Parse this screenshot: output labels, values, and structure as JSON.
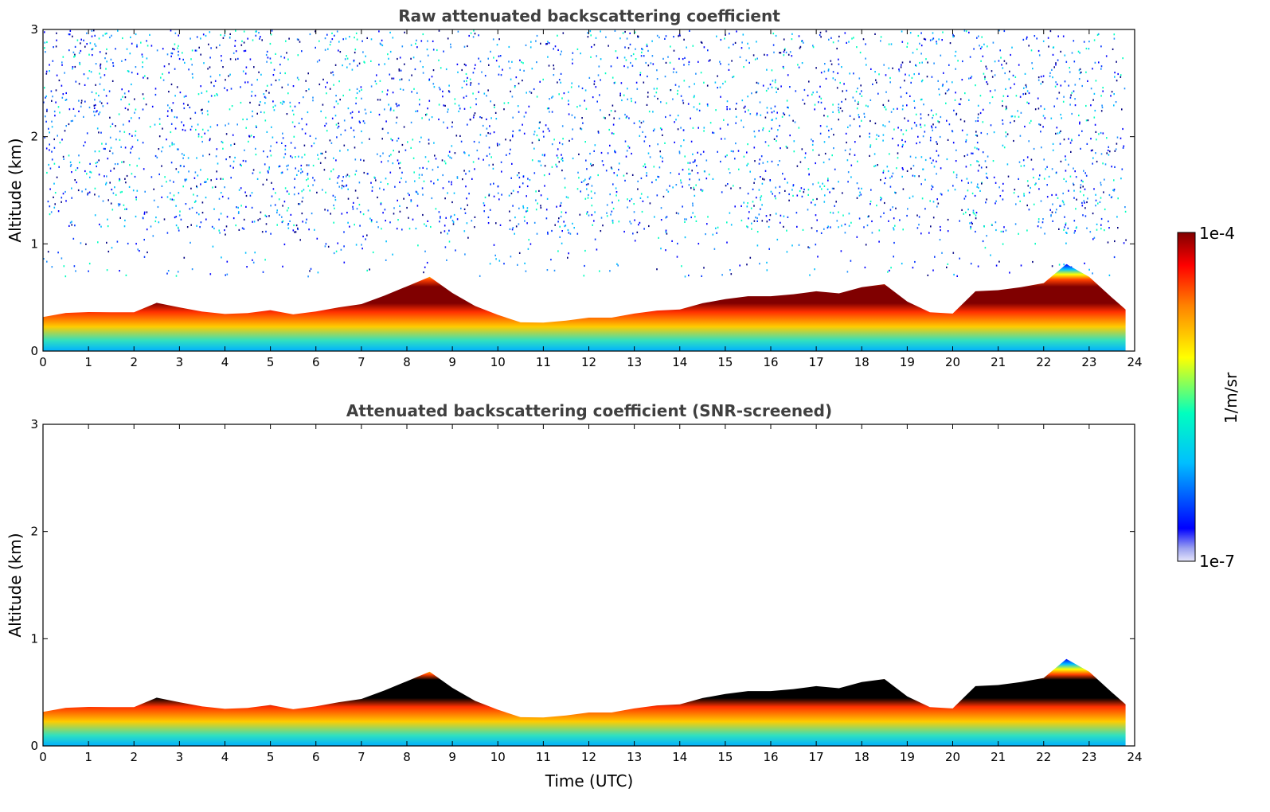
{
  "chart_data": [
    {
      "type": "heatmap",
      "title": "Raw attenuated backscattering coefficient",
      "xlabel": "",
      "ylabel": "Altitude (km)",
      "xlim": [
        0,
        24
      ],
      "ylim": [
        0,
        3
      ],
      "xticks": [
        "0",
        "1",
        "2",
        "3",
        "4",
        "5",
        "6",
        "7",
        "8",
        "9",
        "10",
        "11",
        "12",
        "13",
        "14",
        "15",
        "16",
        "17",
        "18",
        "19",
        "20",
        "21",
        "22",
        "23",
        "24"
      ],
      "yticks": [
        "0",
        "1",
        "2",
        "3"
      ],
      "noise_above_layer": true,
      "layer_top_km": {
        "x": [
          0,
          0.5,
          1,
          1.5,
          2,
          2.5,
          3,
          3.5,
          4,
          4.5,
          5,
          5.5,
          6,
          6.5,
          7,
          7.5,
          8,
          8.5,
          9,
          9.5,
          10,
          10.5,
          11,
          11.5,
          12,
          12.5,
          13,
          13.5,
          14,
          14.5,
          15,
          15.5,
          16,
          16.5,
          17,
          17.5,
          18,
          18.5,
          19,
          19.5,
          20,
          20.5,
          21,
          21.5,
          22,
          22.5,
          23,
          23.5,
          23.8
        ],
        "y": [
          0.33,
          0.36,
          0.36,
          0.35,
          0.37,
          0.45,
          0.4,
          0.38,
          0.35,
          0.35,
          0.37,
          0.35,
          0.37,
          0.4,
          0.45,
          0.52,
          0.6,
          0.68,
          0.55,
          0.42,
          0.33,
          0.28,
          0.27,
          0.28,
          0.3,
          0.32,
          0.35,
          0.37,
          0.4,
          0.45,
          0.48,
          0.5,
          0.52,
          0.53,
          0.55,
          0.55,
          0.6,
          0.62,
          0.45,
          0.37,
          0.35,
          0.55,
          0.58,
          0.6,
          0.63,
          0.8,
          0.7,
          0.5,
          0.38
        ]
      }
    },
    {
      "type": "heatmap",
      "title": "Attenuated backscattering coefficient (SNR-screened)",
      "xlabel": "Time (UTC)",
      "ylabel": "Altitude (km)",
      "xlim": [
        0,
        24
      ],
      "ylim": [
        0,
        3
      ],
      "xticks": [
        "0",
        "1",
        "2",
        "3",
        "4",
        "5",
        "6",
        "7",
        "8",
        "9",
        "10",
        "11",
        "12",
        "13",
        "14",
        "15",
        "16",
        "17",
        "18",
        "19",
        "20",
        "21",
        "22",
        "23",
        "24"
      ],
      "yticks": [
        "0",
        "1",
        "2",
        "3"
      ],
      "noise_above_layer": false,
      "layer_top_km": {
        "x": [
          0,
          0.5,
          1,
          1.5,
          2,
          2.5,
          3,
          3.5,
          4,
          4.5,
          5,
          5.5,
          6,
          6.5,
          7,
          7.5,
          8,
          8.5,
          9,
          9.5,
          10,
          10.5,
          11,
          11.5,
          12,
          12.5,
          13,
          13.5,
          14,
          14.5,
          15,
          15.5,
          16,
          16.5,
          17,
          17.5,
          18,
          18.5,
          19,
          19.5,
          20,
          20.5,
          21,
          21.5,
          22,
          22.5,
          23,
          23.5,
          23.8
        ],
        "y": [
          0.33,
          0.36,
          0.36,
          0.35,
          0.37,
          0.45,
          0.4,
          0.38,
          0.35,
          0.35,
          0.37,
          0.35,
          0.37,
          0.4,
          0.45,
          0.52,
          0.6,
          0.68,
          0.55,
          0.42,
          0.33,
          0.28,
          0.27,
          0.28,
          0.3,
          0.32,
          0.35,
          0.37,
          0.4,
          0.45,
          0.48,
          0.5,
          0.52,
          0.53,
          0.55,
          0.55,
          0.6,
          0.62,
          0.45,
          0.37,
          0.35,
          0.55,
          0.58,
          0.6,
          0.63,
          0.8,
          0.7,
          0.5,
          0.38
        ]
      }
    }
  ],
  "colorbar": {
    "label": "1/m/sr",
    "top_label": "1e-4",
    "bottom_label": "1e-7",
    "colors": [
      "#e6e6fa",
      "#0000ff",
      "#00bfff",
      "#00ffbf",
      "#ffff00",
      "#ff8000",
      "#ff0000",
      "#800000"
    ]
  }
}
